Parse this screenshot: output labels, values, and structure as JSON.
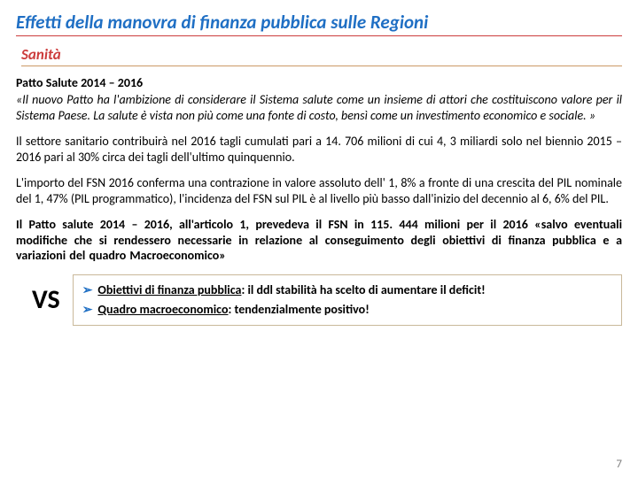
{
  "title": "Effetti della manovra di finanza pubblica sulle Regioni",
  "subtitle": "Sanità",
  "heading": "Patto Salute 2014 – 2016",
  "quote1": "«Il nuovo Patto ha l'ambizione di considerare il Sistema salute come un insieme di attori che costituiscono valore per il Sistema Paese. La salute è vista non più come una fonte di costo, bensì come un investimento economico e sociale. »",
  "p2": "Il settore sanitario contribuirà nel 2016 tagli cumulati pari a 14. 706 milioni di cui 4, 3 miliardi solo nel biennio 2015 – 2016 pari al 30% circa dei tagli dell'ultimo quinquennio.",
  "p3": "L'importo del FSN 2016 conferma una contrazione in valore assoluto dell' 1, 8% a fronte di una crescita del PIL nominale del 1, 47% (PIL programmatico), l'incidenza del FSN sul PIL è al livello più basso dall'inizio del decennio al 6, 6% del PIL.",
  "p4a": "Il Patto salute 2014 – 2016, all'articolo 1, prevedeva il FSN in 115. 444 milioni per il 2016",
  "p4b": "«salvo eventuali modifiche che si rendessero necessarie in relazione al conseguimento degli obiettivi di finanza pubblica e a variazioni del quadro Macroeconomico»",
  "vs": {
    "label": "VS",
    "point1_label": "Obiettivi di finanza pubblica",
    "point1_text": ": il ddl stabilità ha scelto di aumentare il deficit!",
    "point2_label": "Quadro macroeconomico",
    "point2_text": ": tendenzialmente positivo!"
  },
  "pagenum": "7",
  "colors": {
    "title_color": "#1f6fc4",
    "subtitle_color": "#cc3d3d",
    "arrow_color": "#1f6fc4",
    "border_accent": "#cc9966",
    "pagenum_color": "#808080"
  }
}
